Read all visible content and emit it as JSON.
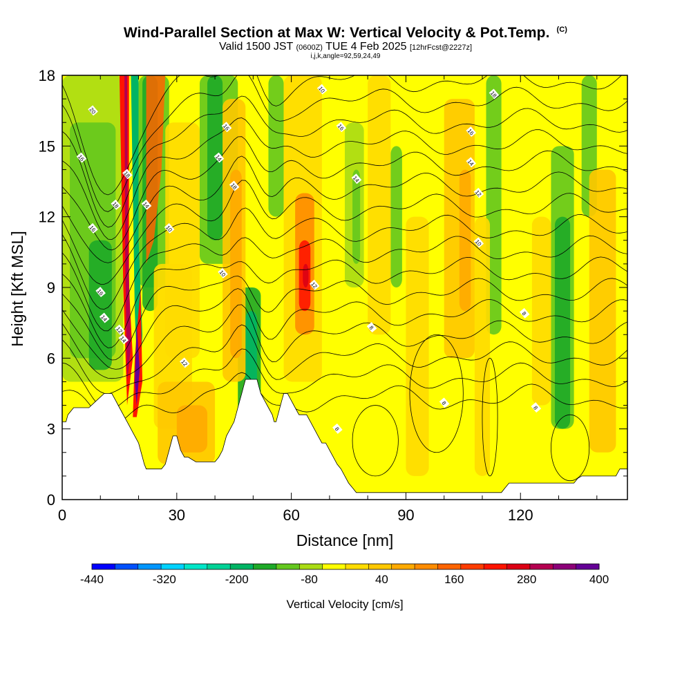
{
  "header": {
    "title": "Wind-Parallel Section at Max W: Vertical Velocity & Pot.Temp.",
    "copyright": "(C)",
    "valid_prefix": "Valid 1500 JST",
    "valid_utc": "(0600Z)",
    "valid_date": "TUE 4 Feb 2025",
    "forecast_info": "[12hrFcst@2227z]",
    "grid_info": "i,j,k,angle=92,59,24,49"
  },
  "chart_data": {
    "type": "heatmap",
    "xlabel": "Distance [nm]",
    "ylabel": "Height [Kft MSL]",
    "xlim": [
      0,
      148
    ],
    "ylim": [
      0,
      18
    ],
    "x_ticks": [
      "0",
      "30",
      "60",
      "90",
      "120"
    ],
    "y_ticks": [
      "0",
      "3",
      "6",
      "9",
      "12",
      "15",
      "18"
    ],
    "x_tick_values": [
      0,
      30,
      60,
      90,
      120
    ],
    "y_tick_values": [
      0,
      3,
      6,
      9,
      12,
      15,
      18
    ],
    "colorbar": {
      "label": "Vertical Velocity [cm/s]",
      "tick_labels": [
        "-440",
        "-320",
        "-200",
        "-80",
        "40",
        "160",
        "280",
        "400"
      ],
      "tick_values": [
        -440,
        -320,
        -200,
        -80,
        40,
        160,
        280,
        400
      ],
      "colors": [
        "#0000ff",
        "#0050ff",
        "#0096ff",
        "#00d2ff",
        "#00e6c8",
        "#00d296",
        "#00b464",
        "#1eaa28",
        "#64c81e",
        "#aadc14",
        "#ffff00",
        "#ffdc00",
        "#ffc800",
        "#ffaa00",
        "#ff8c00",
        "#ff6400",
        "#ff3c00",
        "#ff1400",
        "#dc0014",
        "#b40050",
        "#8c0078",
        "#640096"
      ]
    },
    "terrain": [
      [
        0,
        3.3
      ],
      [
        1,
        3.3
      ],
      [
        1.5,
        3.6
      ],
      [
        3,
        3.9
      ],
      [
        7,
        3.9
      ],
      [
        9,
        4.2
      ],
      [
        11,
        4.5
      ],
      [
        13,
        4.5
      ],
      [
        14,
        4.2
      ],
      [
        15,
        3.9
      ],
      [
        16,
        3.6
      ],
      [
        17,
        3.3
      ],
      [
        18,
        3.0
      ],
      [
        19,
        2.7
      ],
      [
        20,
        2.4
      ],
      [
        20.5,
        2.1
      ],
      [
        21,
        1.8
      ],
      [
        21.5,
        1.5
      ],
      [
        22,
        1.3
      ],
      [
        24,
        1.3
      ],
      [
        26,
        1.3
      ],
      [
        27,
        1.5
      ],
      [
        27.5,
        1.8
      ],
      [
        28,
        2.1
      ],
      [
        28.5,
        2.4
      ],
      [
        29,
        2.7
      ],
      [
        30,
        2.7
      ],
      [
        30.5,
        2.4
      ],
      [
        31,
        2.1
      ],
      [
        32,
        1.8
      ],
      [
        33,
        1.8
      ],
      [
        35,
        1.6
      ],
      [
        38,
        1.6
      ],
      [
        40,
        1.6
      ],
      [
        41,
        1.8
      ],
      [
        42,
        2.1
      ],
      [
        42.5,
        2.4
      ],
      [
        43,
        2.7
      ],
      [
        44,
        3.0
      ],
      [
        45,
        3.3
      ],
      [
        45.5,
        3.6
      ],
      [
        46,
        3.9
      ],
      [
        46.5,
        4.2
      ],
      [
        47,
        4.5
      ],
      [
        47.5,
        4.8
      ],
      [
        48,
        5.1
      ],
      [
        51,
        5.1
      ],
      [
        51.5,
        4.8
      ],
      [
        52,
        4.5
      ],
      [
        53,
        4.2
      ],
      [
        54,
        3.9
      ],
      [
        55,
        3.6
      ],
      [
        55.5,
        3.3
      ],
      [
        56,
        3.3
      ],
      [
        56.5,
        3.6
      ],
      [
        57,
        3.9
      ],
      [
        57.5,
        4.2
      ],
      [
        58,
        4.5
      ],
      [
        59,
        4.5
      ],
      [
        60,
        4.2
      ],
      [
        61,
        3.9
      ],
      [
        62,
        3.6
      ],
      [
        64,
        3.6
      ],
      [
        65,
        3.3
      ],
      [
        66,
        3.0
      ],
      [
        67,
        2.7
      ],
      [
        68,
        2.4
      ],
      [
        69,
        2.4
      ],
      [
        70,
        2.1
      ],
      [
        71,
        1.8
      ],
      [
        72,
        1.5
      ],
      [
        73,
        1.3
      ],
      [
        74,
        1.0
      ],
      [
        75,
        0.7
      ],
      [
        76,
        0.5
      ],
      [
        77,
        0.3
      ],
      [
        95,
        0.3
      ],
      [
        105,
        0.3
      ],
      [
        110,
        0.3
      ],
      [
        115,
        0.3
      ],
      [
        116,
        0.5
      ],
      [
        117,
        0.7
      ],
      [
        120,
        0.7
      ],
      [
        125,
        0.7
      ],
      [
        130,
        0.7
      ],
      [
        134,
        0.7
      ],
      [
        135,
        0.9
      ],
      [
        136,
        1.0
      ],
      [
        140,
        1.0
      ],
      [
        145,
        1.0
      ],
      [
        146,
        1.3
      ],
      [
        148,
        1.3
      ]
    ],
    "isentrope_labels": [
      "20",
      "16",
      "18",
      "18",
      "14",
      "16",
      "16",
      "14",
      "12",
      "14",
      "10",
      "14",
      "18",
      "16",
      "10",
      "12",
      "10",
      "8",
      "16",
      "14",
      "12",
      "18",
      "16",
      "14",
      "12",
      "10",
      "8",
      "8",
      "8",
      "8"
    ]
  }
}
